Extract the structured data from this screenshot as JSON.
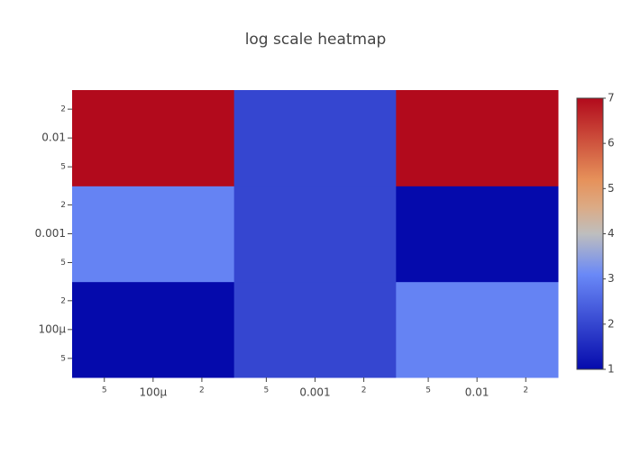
{
  "chart_data": {
    "type": "heatmap",
    "title": "log scale heatmap",
    "x": [
      0.0001,
      0.001,
      0.01
    ],
    "y": [
      0.0001,
      0.001,
      0.01
    ],
    "z": [
      [
        1,
        2,
        3
      ],
      [
        3,
        2,
        1
      ],
      [
        7,
        2,
        7
      ]
    ],
    "x_log": true,
    "y_log": true,
    "xlim": [
      3.16227766e-05,
      0.0316227766
    ],
    "ylim": [
      3.16227766e-05,
      0.0316227766
    ],
    "xticks": [
      {
        "value": 5e-05,
        "label": "5"
      },
      {
        "value": 0.0001,
        "label": "100µ"
      },
      {
        "value": 0.0002,
        "label": "2"
      },
      {
        "value": 0.0005,
        "label": "5"
      },
      0.001,
      {
        "value": 0.002,
        "label": "2"
      },
      {
        "value": 0.005,
        "label": "5"
      },
      0.01,
      {
        "value": 0.02,
        "label": "2"
      }
    ],
    "yticks": [
      {
        "value": 5e-05,
        "label": "5"
      },
      {
        "value": 0.0001,
        "label": "100µ"
      },
      {
        "value": 0.0002,
        "label": "2"
      },
      {
        "value": 0.0005,
        "label": "5"
      },
      0.001,
      {
        "value": 0.002,
        "label": "2"
      },
      {
        "value": 0.005,
        "label": "5"
      },
      0.01,
      {
        "value": 0.02,
        "label": "2"
      }
    ],
    "zlim": [
      1,
      7
    ],
    "colorbar_ticks": [
      1,
      2,
      3,
      4,
      5,
      6,
      7
    ],
    "colorscale": [
      [
        0,
        "rgb(5,10,172)"
      ],
      [
        0.35,
        "rgb(106,137,247)"
      ],
      [
        0.5,
        "rgb(190,190,190)"
      ],
      [
        0.6,
        "rgb(220,170,132)"
      ],
      [
        0.7,
        "rgb(230,145,90)"
      ],
      [
        1,
        "rgb(178,10,28)"
      ]
    ]
  }
}
